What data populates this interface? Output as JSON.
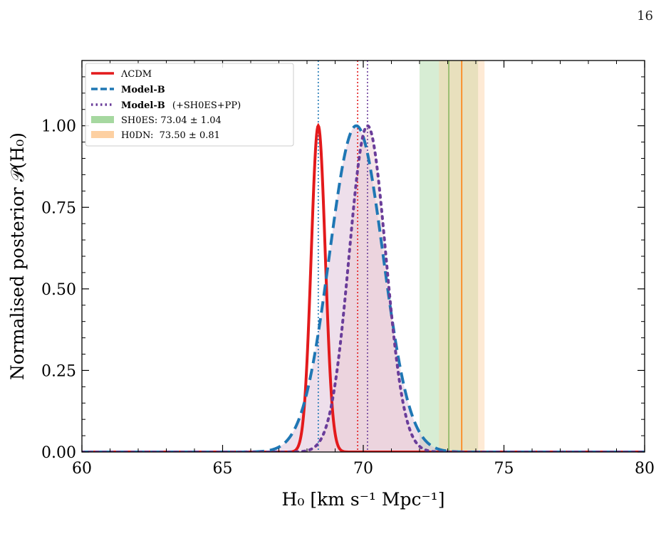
{
  "page": {
    "number": "16"
  },
  "chart_data": {
    "type": "line",
    "xlabel": "H₀ [km s⁻¹ Mpc⁻¹]",
    "ylabel": "Normalised posterior 𝒫(H₀)",
    "xlim": [
      60,
      80
    ],
    "ylim": [
      0,
      1.2
    ],
    "xticks": [
      60,
      65,
      70,
      75,
      80
    ],
    "xtick_labels": [
      "60",
      "65",
      "70",
      "75",
      "80"
    ],
    "yticks": [
      0,
      0.25,
      0.5,
      0.75,
      1.0
    ],
    "ytick_labels": [
      "0.00",
      "0.25",
      "0.50",
      "0.75",
      "1.00"
    ],
    "grid": false,
    "legend_position": "top-left",
    "series": [
      {
        "name": "ΛCDM",
        "style": "solid",
        "color": "#e31a1c",
        "mean": 68.4,
        "sigma": 0.25,
        "peak": 1.0,
        "fill": false
      },
      {
        "name": "Model-B",
        "style": "dashed",
        "color": "#1f77b4",
        "mean": 69.75,
        "sigma": 0.95,
        "peak": 1.0,
        "fill": true
      },
      {
        "name": "Model-B",
        "name_suffix": "(+SH0ES+PP)",
        "style": "dotted",
        "color": "#6a3d9a",
        "mean": 70.15,
        "sigma": 0.65,
        "peak": 1.0,
        "fill": true
      }
    ],
    "vlines": [
      {
        "x": 68.4,
        "color": "#1f77b4"
      },
      {
        "x": 69.8,
        "color": "#e31a1c"
      },
      {
        "x": 70.15,
        "color": "#6a3d9a"
      }
    ],
    "bands": [
      {
        "label": "SH0ES: 73.04 ± 1.04",
        "center": 73.04,
        "halfwidth": 1.04,
        "color": "#2ca02c",
        "fill_color": "#a6d8a0"
      },
      {
        "label": "H0DN:  73.50 ± 0.81",
        "center": 73.5,
        "halfwidth": 0.81,
        "color": "#ff7f0e",
        "fill_color": "#fdd0a2"
      }
    ]
  },
  "colors": {
    "model_b_fill": "#d9b8d2",
    "model_b_plus_fill": "#e8c8cf"
  }
}
